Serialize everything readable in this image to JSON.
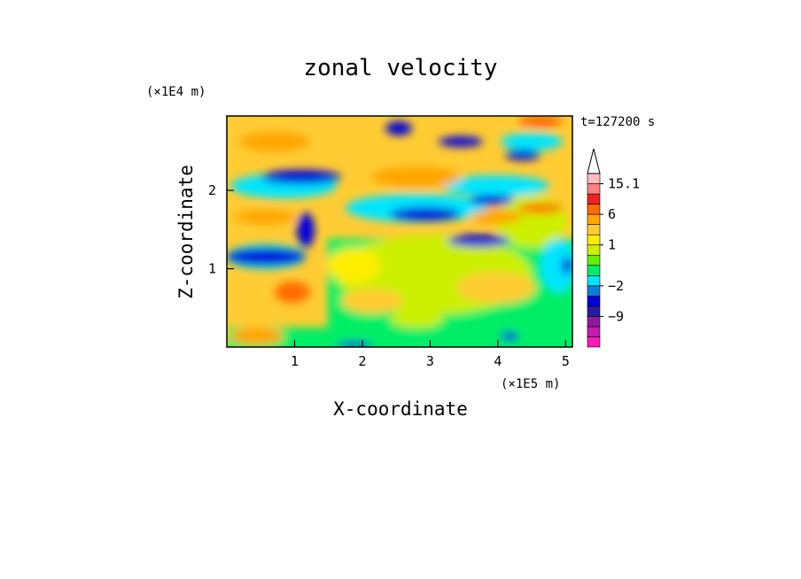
{
  "chart_data": {
    "type": "heatmap",
    "title": "zonal velocity",
    "xlabel": "X-coordinate",
    "ylabel": "Z-coordinate",
    "x_scale_label": "(×1E5 m)",
    "y_scale_label": "(×1E4 m)",
    "time_label": "t=127200 s",
    "xlim": [
      0,
      5.1
    ],
    "ylim": [
      0,
      2.95
    ],
    "x_ticks": [
      1,
      2,
      3,
      4,
      5
    ],
    "y_ticks": [
      1,
      2
    ],
    "colorbar": {
      "levels": [
        -14,
        -11.5,
        -9,
        -6.5,
        -4,
        -2,
        -1,
        0,
        0.5,
        1,
        1.5,
        2,
        6,
        9,
        12,
        15.1
      ],
      "colors": [
        "#ff1ab9",
        "#c71aae",
        "#8c1aa0",
        "#2a1aa0",
        "#0000d9",
        "#0a7fd9",
        "#00e5ff",
        "#00ee66",
        "#66f000",
        "#ccf000",
        "#ffee00",
        "#ffcc33",
        "#ffa500",
        "#ff6a00",
        "#ee2222",
        "#ff8080",
        "#ffbcbc"
      ],
      "labels": [
        "15.1",
        "6",
        "1",
        "−2",
        "−9"
      ],
      "label_values": [
        15.1,
        6,
        1,
        -2,
        -9
      ]
    }
  }
}
